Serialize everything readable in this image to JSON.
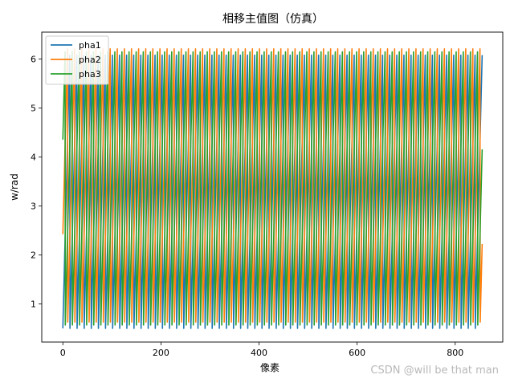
{
  "chart_data": {
    "type": "line",
    "title": "相移主值图（仿真）",
    "xlabel": "像素",
    "ylabel": "w/rad",
    "xlim": [
      -43,
      897
    ],
    "ylim": [
      0.22,
      6.55
    ],
    "xticks": [
      0,
      200,
      400,
      600,
      800
    ],
    "yticks": [
      1,
      2,
      3,
      4,
      5,
      6
    ],
    "grid": false,
    "legend_position": "top-left",
    "wrap_min": 0.5,
    "wrap_max": 6.28,
    "x_max": 855,
    "series": [
      {
        "name": "pha1",
        "color": "#1f77b4",
        "period": 14.5,
        "phase": 0.0
      },
      {
        "name": "pha2",
        "color": "#ff7f0e",
        "period": 14.5,
        "phase": 2.09
      },
      {
        "name": "pha3",
        "color": "#2ca02c",
        "period": 14.5,
        "phase": 4.19
      }
    ]
  },
  "watermark": "CSDN @will be that man"
}
